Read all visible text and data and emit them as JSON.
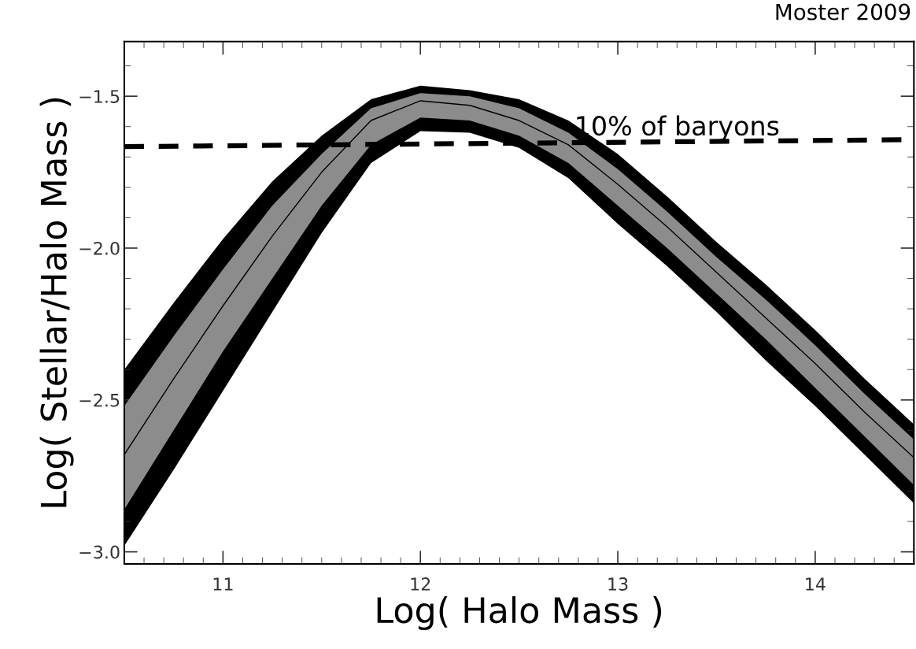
{
  "chart_data": {
    "type": "line",
    "xlabel": "Log( Halo Mass )",
    "ylabel": "Log( Stellar/Halo Mass )",
    "x": [
      10.5,
      10.75,
      11.0,
      11.25,
      11.5,
      11.75,
      12.0,
      12.25,
      12.5,
      12.75,
      13.0,
      13.25,
      13.5,
      13.75,
      14.0,
      14.25,
      14.5
    ],
    "series": [
      {
        "color": "#000000",
        "values": [
          -2.68,
          -2.43,
          -2.19,
          -1.96,
          -1.75,
          -1.58,
          -1.515,
          -1.53,
          -1.58,
          -1.66,
          -1.79,
          -1.93,
          -2.08,
          -2.23,
          -2.38,
          -2.54,
          -2.69
        ],
        "upper": [
          -2.4,
          -2.18,
          -1.97,
          -1.78,
          -1.63,
          -1.51,
          -1.465,
          -1.48,
          -1.51,
          -1.58,
          -1.69,
          -1.83,
          -1.98,
          -2.12,
          -2.27,
          -2.43,
          -2.58
        ],
        "lower": [
          -2.98,
          -2.73,
          -2.47,
          -2.21,
          -1.95,
          -1.72,
          -1.615,
          -1.62,
          -1.67,
          -1.77,
          -1.92,
          -2.06,
          -2.21,
          -2.37,
          -2.52,
          -2.68,
          -2.84
        ]
      },
      {
        "color": "#8c8c8c",
        "values": [
          null,
          null,
          null,
          null,
          null,
          null,
          null,
          null,
          null,
          null,
          null,
          null,
          null,
          null,
          null,
          null,
          null
        ],
        "upper": [
          -2.52,
          -2.29,
          -2.07,
          -1.86,
          -1.69,
          -1.54,
          -1.49,
          -1.5,
          -1.54,
          -1.62,
          -1.74,
          -1.88,
          -2.03,
          -2.17,
          -2.32,
          -2.48,
          -2.63
        ],
        "lower": [
          -2.86,
          -2.6,
          -2.34,
          -2.1,
          -1.86,
          -1.66,
          -1.57,
          -1.58,
          -1.63,
          -1.72,
          -1.86,
          -2.0,
          -2.15,
          -2.3,
          -2.46,
          -2.62,
          -2.78
        ]
      },
      {
        "color": "#000000",
        "line_style": "dashed",
        "x": [
          10.5,
          14.5
        ],
        "values": [
          -1.666,
          -1.643
        ]
      }
    ],
    "annotations": [
      "10% of baryons",
      "Moster 2009"
    ],
    "xlim": [
      10.5,
      14.5
    ],
    "xticks": [
      11,
      12,
      13,
      14
    ],
    "ylim": [
      -3.04,
      -1.32
    ],
    "yticks": [
      {
        "value": -3.0,
        "label": "−3.0"
      },
      {
        "value": -2.5,
        "label": "−2.5"
      },
      {
        "value": -2.0,
        "label": "−2.0"
      },
      {
        "value": -1.5,
        "label": "−1.5"
      }
    ],
    "grid": false,
    "legend": false
  }
}
